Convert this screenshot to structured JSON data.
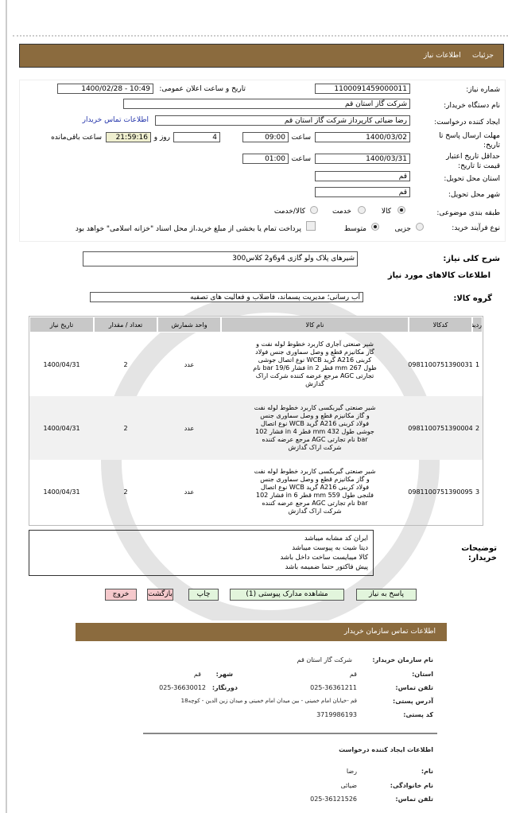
{
  "nav": {
    "items": [
      "جزئیات",
      "اطلاعات نیاز"
    ]
  },
  "form": {
    "need_number_label": "شماره نیاز:",
    "need_number": "1100091459000011",
    "announce_label": "تاریخ و ساعت اعلان عمومی:",
    "announce_value": "1400/02/28 - 10:49",
    "buyer_label": "نام دستگاه خریدار:",
    "buyer": "شرکت گاز استان قم",
    "creator_label": "ایجاد کننده درخواست:",
    "creator": "رضا ضیائی کارپرداز شرکت گاز استان قم",
    "contact_link": "اطلاعات تماس خریدار",
    "deadline_label": "مهلت ارسال پاسخ تا تاریخ:",
    "deadline_date": "1400/03/02",
    "time_label": "ساعت",
    "deadline_time": "09:00",
    "days": "4",
    "days_label": "روز و",
    "remaining": "21:59:16",
    "remaining_label": "ساعت باقی‌مانده",
    "validity_label": "حداقل تاریخ اعتبار قیمت تا تاریخ:",
    "validity_date": "1400/03/31",
    "validity_time": "01:00",
    "province_label": "استان محل تحویل:",
    "province": "قم",
    "city_label": "شهر محل تحویل:",
    "city": "قم",
    "category_label": "طبقه بندی موضوعی:",
    "category_options": [
      "کالا",
      "خدمت",
      "کالا/خدمت"
    ],
    "category_selected": "کالا",
    "process_label": "نوع فرآیند خرید:",
    "process_options": [
      "جزیی",
      "متوسط"
    ],
    "process_selected": "متوسط",
    "payment_note": "پرداخت تمام یا بخشی از مبلغ خرید،از محل اسناد \"خزانه اسلامی\" خواهد بود"
  },
  "summary": {
    "label": "شرح کلی نیاز:",
    "value": "شیرهای پلاک ولو گازی 4و6و2 کلاس300"
  },
  "goods_title": "اطلاعات کالاهای مورد نیاز",
  "group": {
    "label": "گروه کالا:",
    "value": "آب رسانی؛ مدیریت پسماند، فاضلاب و فعالیت های تصفیه"
  },
  "table": {
    "headers": [
      "ردیف",
      "کدکالا",
      "نام کالا",
      "واحد شمارش",
      "تعداد / مقدار",
      "تاریخ نیاز"
    ],
    "rows": [
      {
        "n": "1",
        "code": "0981100751390031",
        "name": "شیر صنعتی آجاری کاربرد خطوط لوله نفت و گاز مکانیزم قطع و وصل سماوری جنس فولاد کربنی A216 گرید WCB نوع اتصال جوشی طول 267 mm قطر 2 in فشار 19/6 bar نام تجارتی AGC مرجع عرضه کننده شرکت اراک گدازش",
        "unit": "عدد",
        "qty": "2",
        "date": "1400/04/31"
      },
      {
        "n": "2",
        "code": "0981100751390004",
        "name": "شیر صنعتی گیربکسی کاربرد خطوط لوله نفت و گاز مکانیزم قطع و وصل سماوری جنس فولاد کربنی A216 گرید WCB نوع اتصال جوشی طول 432 mm قطر 4 in فشار 102 bar نام تجارتی AGC مرجع عرضه کننده شرکت اراک گدازش",
        "unit": "عدد",
        "qty": "2",
        "date": "1400/04/31"
      },
      {
        "n": "3",
        "code": "0981100751390095",
        "name": "شیر صنعتی گیربکسی کاربرد خطوط لوله نفت و گاز مکانیزم قطع و وصل سماوری جنس فولاد کربنی A216 گرید WCB نوع اتصال فلنجی طول 559 mm قطر 6 in فشار 102 bar نام تجارتی AGC مرجع عرضه کننده شرکت اراک گدازش",
        "unit": "عدد",
        "qty": "2",
        "date": "1400/04/31"
      }
    ]
  },
  "notes": {
    "label": "توضیحات خریدار:",
    "lines": [
      "ایران کد مشابه میباشد",
      "دیتا شیت به پیوست میباشد",
      "کالا میبایست ساخت داخل باشد",
      "پیش فاکتور حتما ضمیمه باشد"
    ]
  },
  "buttons": {
    "reply": "پاسخ به نیاز",
    "attachments": "مشاهده مدارک پیوستی (1)",
    "print": "چاپ",
    "back": "بازگشت",
    "exit": "خروج"
  },
  "contact": {
    "title": "اطلاعات تماس سازمان خریدار",
    "org_label": "نام سازمان خریدار:",
    "org": "شرکت گاز استان قم",
    "province_label": "استان:",
    "province": "قم",
    "city_label": "شهر:",
    "city": "قم",
    "phone_label": "تلفن تماس:",
    "phone": "025-36361211",
    "fax_label": "دورنگار:",
    "fax": "025-36630012",
    "address_label": "آدرس پستی:",
    "address": "قم -خیابان امام خمینی - بین میدان امام خمینی و میدان زین الدین - کوچه18",
    "postal_label": "کد پستی:",
    "postal": "3719986193",
    "creator_title": "اطلاعات ایجاد کننده درخواست",
    "name_label": "نام:",
    "name": "رضا",
    "family_label": "نام خانوادگی:",
    "family": "ضیائی",
    "cphone_label": "تلفن تماس:",
    "cphone": "025-36121526"
  },
  "colors": {
    "brown": "#8b6b3e",
    "remaining_bg": "#efefcf",
    "btn_green": "#e2f5dc",
    "btn_pink": "#f5c9cc"
  }
}
